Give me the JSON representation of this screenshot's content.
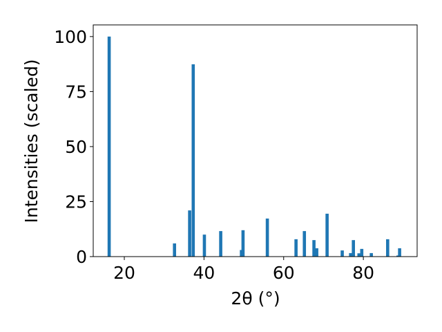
{
  "chart_data": {
    "type": "bar",
    "x_label": "2θ (°)",
    "y_label": "Intensities (scaled)",
    "x": [
      16.2,
      32.6,
      36.4,
      37.3,
      40.1,
      44.2,
      49.4,
      49.8,
      55.9,
      63.1,
      65.2,
      67.6,
      68.3,
      70.9,
      74.7,
      76.8,
      77.5,
      78.9,
      79.6,
      82.0,
      86.1,
      88.7,
      89.1
    ],
    "values": [
      100,
      6,
      21,
      87.4,
      10,
      11.6,
      3,
      12,
      17.3,
      7.9,
      11.6,
      7.5,
      3.8,
      19.5,
      2.8,
      1.6,
      7.5,
      1.5,
      3.5,
      1.6,
      7.9,
      0.5,
      3.8
    ],
    "color": "#1f77b4",
    "xlim": [
      12.2,
      93.5
    ],
    "xticks": [
      20,
      40,
      60,
      80
    ],
    "ylim": [
      0,
      105.3
    ],
    "yticks": [
      0,
      25,
      50,
      75,
      100
    ]
  }
}
